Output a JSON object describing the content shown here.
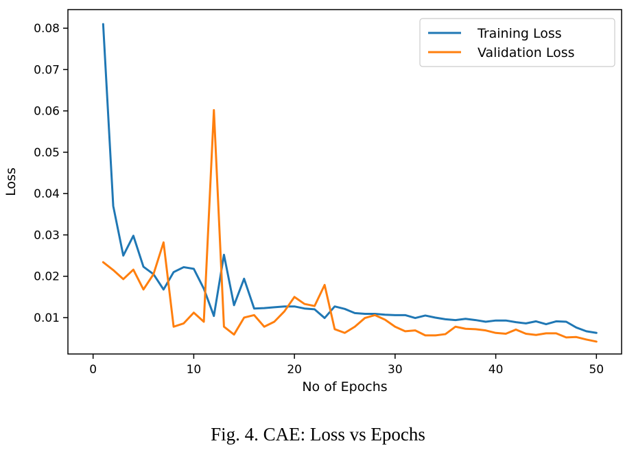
{
  "caption": "Fig. 4.   CAE: Loss vs Epochs",
  "chart_data": {
    "type": "line",
    "title": "",
    "xlabel": "No of Epochs",
    "ylabel": "Loss",
    "xlim": [
      -2.5,
      52.5
    ],
    "ylim": [
      0.0012,
      0.0845
    ],
    "xticks": [
      0,
      10,
      20,
      30,
      40,
      50
    ],
    "yticks": [
      0.01,
      0.02,
      0.03,
      0.04,
      0.05,
      0.06,
      0.07,
      0.08
    ],
    "ytick_labels": [
      "0.01",
      "0.02",
      "0.03",
      "0.04",
      "0.05",
      "0.06",
      "0.07",
      "0.08"
    ],
    "grid": false,
    "legend_position": "top-right",
    "x": [
      1,
      2,
      3,
      4,
      5,
      6,
      7,
      8,
      9,
      10,
      11,
      12,
      13,
      14,
      15,
      16,
      17,
      18,
      19,
      20,
      21,
      22,
      23,
      24,
      25,
      26,
      27,
      28,
      29,
      30,
      31,
      32,
      33,
      34,
      35,
      36,
      37,
      38,
      39,
      40,
      41,
      42,
      43,
      44,
      45,
      46,
      47,
      48,
      49,
      50
    ],
    "series": [
      {
        "name": "Training Loss",
        "color": "#1f77b4",
        "values": [
          0.081,
          0.037,
          0.025,
          0.0298,
          0.0223,
          0.0205,
          0.0168,
          0.021,
          0.0222,
          0.0218,
          0.017,
          0.0104,
          0.0252,
          0.013,
          0.0194,
          0.0122,
          0.0123,
          0.0125,
          0.0127,
          0.0127,
          0.0122,
          0.012,
          0.0099,
          0.0127,
          0.0121,
          0.0111,
          0.0109,
          0.0109,
          0.0107,
          0.0106,
          0.0106,
          0.0099,
          0.0105,
          0.01,
          0.0096,
          0.0094,
          0.0097,
          0.0094,
          0.009,
          0.0093,
          0.0093,
          0.0089,
          0.0086,
          0.0091,
          0.0084,
          0.0091,
          0.009,
          0.0076,
          0.0067,
          0.0063
        ]
      },
      {
        "name": "Validation Loss",
        "color": "#ff7f0e",
        "values": [
          0.0234,
          0.0215,
          0.0193,
          0.0216,
          0.0168,
          0.0205,
          0.0282,
          0.0078,
          0.0086,
          0.0112,
          0.009,
          0.0602,
          0.0078,
          0.0059,
          0.01,
          0.0106,
          0.0078,
          0.009,
          0.0115,
          0.015,
          0.0133,
          0.0128,
          0.0179,
          0.0072,
          0.0063,
          0.0078,
          0.0099,
          0.0106,
          0.0095,
          0.0078,
          0.0067,
          0.0069,
          0.0057,
          0.0057,
          0.006,
          0.0078,
          0.0073,
          0.0072,
          0.0069,
          0.0063,
          0.0061,
          0.0071,
          0.0061,
          0.0058,
          0.0062,
          0.0062,
          0.0052,
          0.0053,
          0.0047,
          0.0042
        ]
      }
    ]
  }
}
